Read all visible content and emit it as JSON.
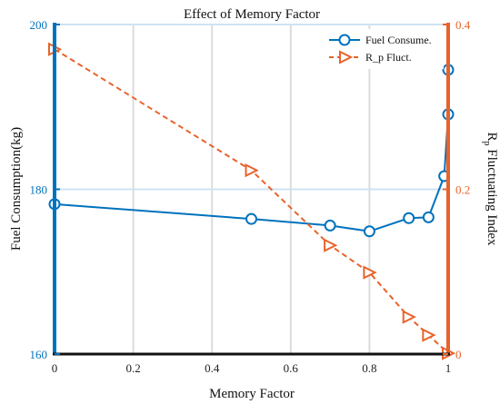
{
  "chart_data": {
    "type": "line",
    "title": "Effect of Memory Factor",
    "xlabel": "Memory Factor",
    "ylabel_left": "Fuel Consumption(kg)",
    "ylabel_right_main": "R",
    "ylabel_right_sub": "p",
    "ylabel_right_rest": " Fluctuating Index",
    "xlim": [
      0,
      1
    ],
    "ylim_left": [
      160,
      200
    ],
    "ylim_right": [
      0,
      0.4
    ],
    "x_ticks": [
      "0",
      "0.2",
      "0.4",
      "0.6",
      "0.8",
      "1"
    ],
    "y_left_ticks": [
      "160",
      "180",
      "200"
    ],
    "y_right_ticks": [
      "0",
      "0.2",
      "0.4"
    ],
    "grid": true,
    "legend_position": "top-right",
    "colors": {
      "left_axis": "#0072BD",
      "right_axis": "#E8632B",
      "bottom_axis": "#111111",
      "grid": "#dcdcdc"
    },
    "series": [
      {
        "name": "Fuel Consume.",
        "axis": "left",
        "marker": "circle",
        "linestyle": "solid",
        "color": "#0072BD",
        "x": [
          0,
          0.5,
          0.7,
          0.8,
          0.9,
          0.95,
          0.99,
          1.0,
          1.0
        ],
        "y": [
          178.2,
          176.4,
          175.6,
          174.9,
          176.5,
          176.6,
          181.6,
          189.1,
          194.5
        ]
      },
      {
        "name": "R_p Fluct.",
        "axis": "right",
        "marker": "triangle-right",
        "linestyle": "dashed",
        "color": "#E8632B",
        "x": [
          0,
          0.5,
          0.7,
          0.8,
          0.9,
          0.95,
          1.0
        ],
        "y": [
          0.37,
          0.223,
          0.132,
          0.099,
          0.045,
          0.023,
          0.001
        ]
      }
    ]
  }
}
